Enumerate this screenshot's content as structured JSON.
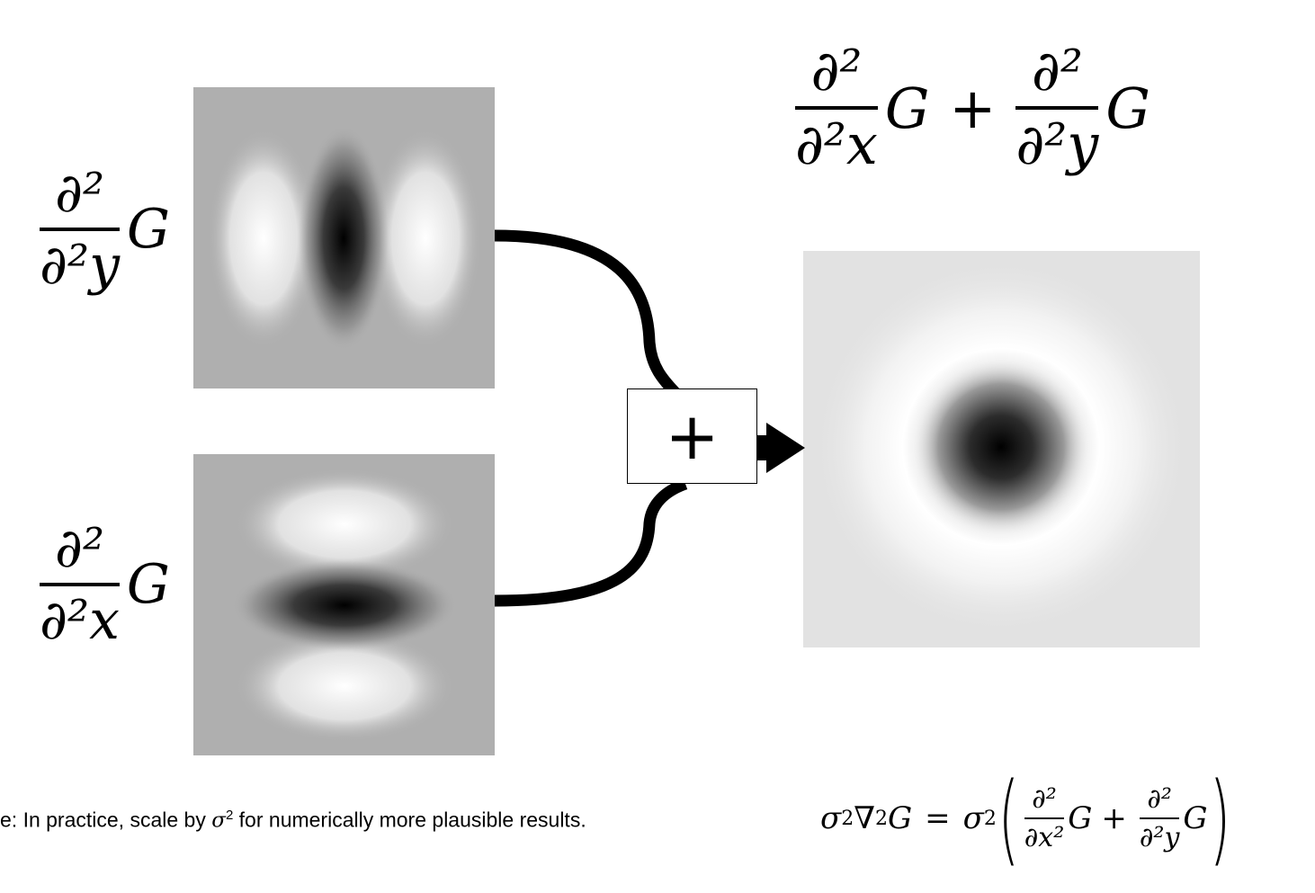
{
  "labels": {
    "yy": {
      "num": "∂²",
      "den": "∂²y",
      "g": "G"
    },
    "xx": {
      "num": "∂²",
      "den": "∂²x",
      "g": "G"
    },
    "sum_left": {
      "num": "∂²",
      "den": "∂²x",
      "g": "G"
    },
    "plus": "+",
    "sum_right": {
      "num": "∂²",
      "den": "∂²y",
      "g": "G"
    }
  },
  "plus_box_label": "+",
  "note": {
    "prefix": "e: In practice, scale by ",
    "symbol": "σ",
    "exponent": "2",
    "suffix": " for numerically more plausible results."
  },
  "formula": {
    "lhs_sigma": "σ",
    "lhs_sigma_exp": "2",
    "lhs_nabla": "∇",
    "lhs_nabla_exp": "2",
    "lhs_g": "G",
    "equals": "=",
    "rhs_sigma": "σ",
    "rhs_sigma_exp": "2",
    "f1_num": "∂²",
    "f1_den": "∂x²",
    "f1_g": "G",
    "plus": "+",
    "f2_num": "∂²",
    "f2_den": "∂²y",
    "f2_g": "G"
  },
  "colors": {
    "background": "#ffffff",
    "kernel_bg": "#afafaf",
    "result_bg": "#e2e2e2",
    "stroke": "#000000"
  }
}
